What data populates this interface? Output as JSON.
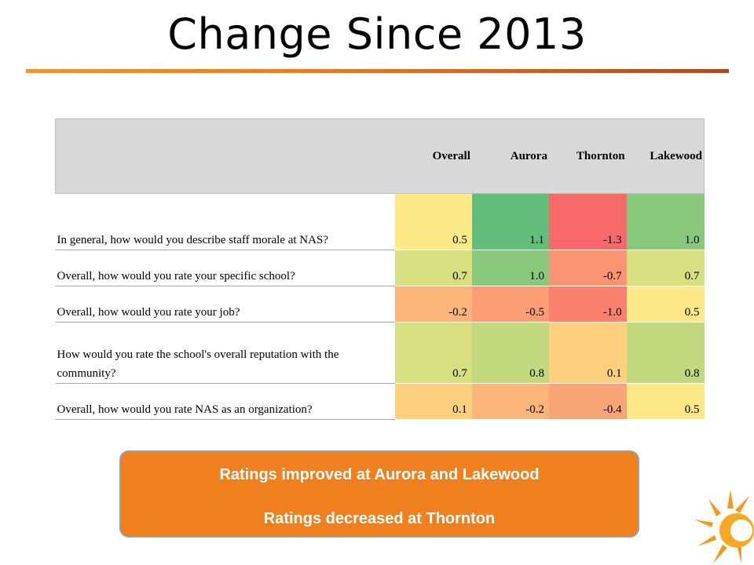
{
  "slide": {
    "title": "Change Since 2013"
  },
  "table": {
    "headers": [
      "",
      "Overall",
      "Aurora",
      "Thornton",
      "Lakewood"
    ],
    "rows": [
      {
        "question": "In general, how would you describe staff morale at NAS?",
        "values": [
          "0.5",
          "1.1",
          "-1.3",
          "1.0"
        ],
        "colors": [
          "#fde987",
          "#63be7b",
          "#f8696b",
          "#8ac97d"
        ]
      },
      {
        "question": "Overall, how would you rate your specific school?",
        "values": [
          "0.7",
          "1.0",
          "-0.7",
          "0.7"
        ],
        "colors": [
          "#d7df81",
          "#8ac97d",
          "#fa9473",
          "#d7df81"
        ]
      },
      {
        "question": "Overall, how would you rate your job?",
        "values": [
          "-0.2",
          "-0.5",
          "-1.0",
          "0.5"
        ],
        "colors": [
          "#fbb57a",
          "#fa9d75",
          "#f9806f",
          "#fde987"
        ]
      },
      {
        "question": "How would you rate the school's overall reputation with the community?",
        "values": [
          "0.7",
          "0.8",
          "0.1",
          "0.8"
        ],
        "colors": [
          "#d7df81",
          "#c2d980",
          "#fdd07f",
          "#c2d980"
        ]
      },
      {
        "question": "Overall, how would you rate NAS as an organization?",
        "values": [
          "0.1",
          "-0.2",
          "-0.4",
          "0.5"
        ],
        "colors": [
          "#fdd07f",
          "#fbb57a",
          "#faa577",
          "#fde987"
        ]
      }
    ]
  },
  "callout": {
    "line1": "Ratings improved at Aurora and Lakewood",
    "line2": "Ratings decreased at Thornton"
  },
  "icons": [
    "sun-logo-icon"
  ]
}
